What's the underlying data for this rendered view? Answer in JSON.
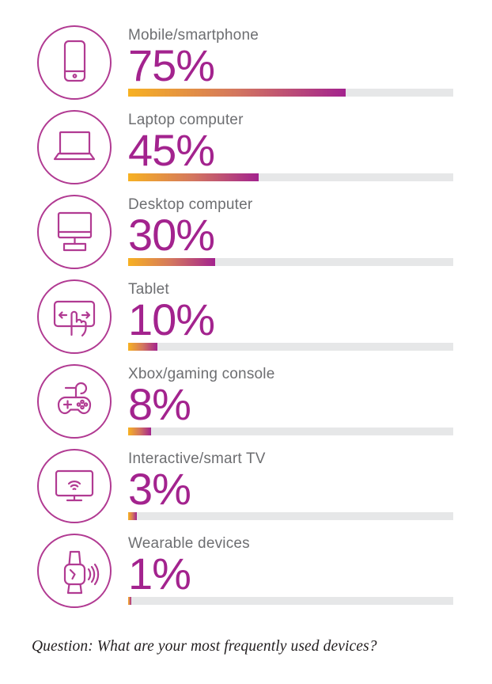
{
  "colors": {
    "accent": "#A3238E",
    "icon_stroke": "#B13A92",
    "label_color": "#6D6E71",
    "track_color": "#E6E7E8",
    "bar_gradient": [
      "#F7B122",
      "#D3765F",
      "#A3238E"
    ]
  },
  "rows": [
    {
      "label": "Mobile/smartphone",
      "percent_label": "75%",
      "value": 75,
      "icon": "smartphone-icon"
    },
    {
      "label": "Laptop computer",
      "percent_label": "45%",
      "value": 45,
      "icon": "laptop-icon"
    },
    {
      "label": "Desktop computer",
      "percent_label": "30%",
      "value": 30,
      "icon": "desktop-icon"
    },
    {
      "label": "Tablet",
      "percent_label": "10%",
      "value": 10,
      "icon": "tablet-touch-icon"
    },
    {
      "label": "Xbox/gaming console",
      "percent_label": "8%",
      "value": 8,
      "icon": "gamepad-icon"
    },
    {
      "label": "Interactive/smart TV",
      "percent_label": "3%",
      "value": 3,
      "icon": "smart-tv-icon"
    },
    {
      "label": "Wearable devices",
      "percent_label": "1%",
      "value": 1,
      "icon": "smartwatch-icon"
    }
  ],
  "question": "Question: What are your most frequently used devices?",
  "chart_data": {
    "type": "bar",
    "orientation": "horizontal",
    "categories": [
      "Mobile/smartphone",
      "Laptop computer",
      "Desktop computer",
      "Tablet",
      "Xbox/gaming console",
      "Interactive/smart TV",
      "Wearable devices"
    ],
    "values": [
      75,
      45,
      30,
      10,
      8,
      3,
      1
    ],
    "value_unit": "%",
    "title": "",
    "xlabel": "",
    "ylabel": "",
    "annotation": "Question: What are your most frequently used devices?",
    "scale_max": 112,
    "grid": false,
    "legend": false,
    "bar_style": "gradient yellow-to-magenta fill on light gray track"
  }
}
